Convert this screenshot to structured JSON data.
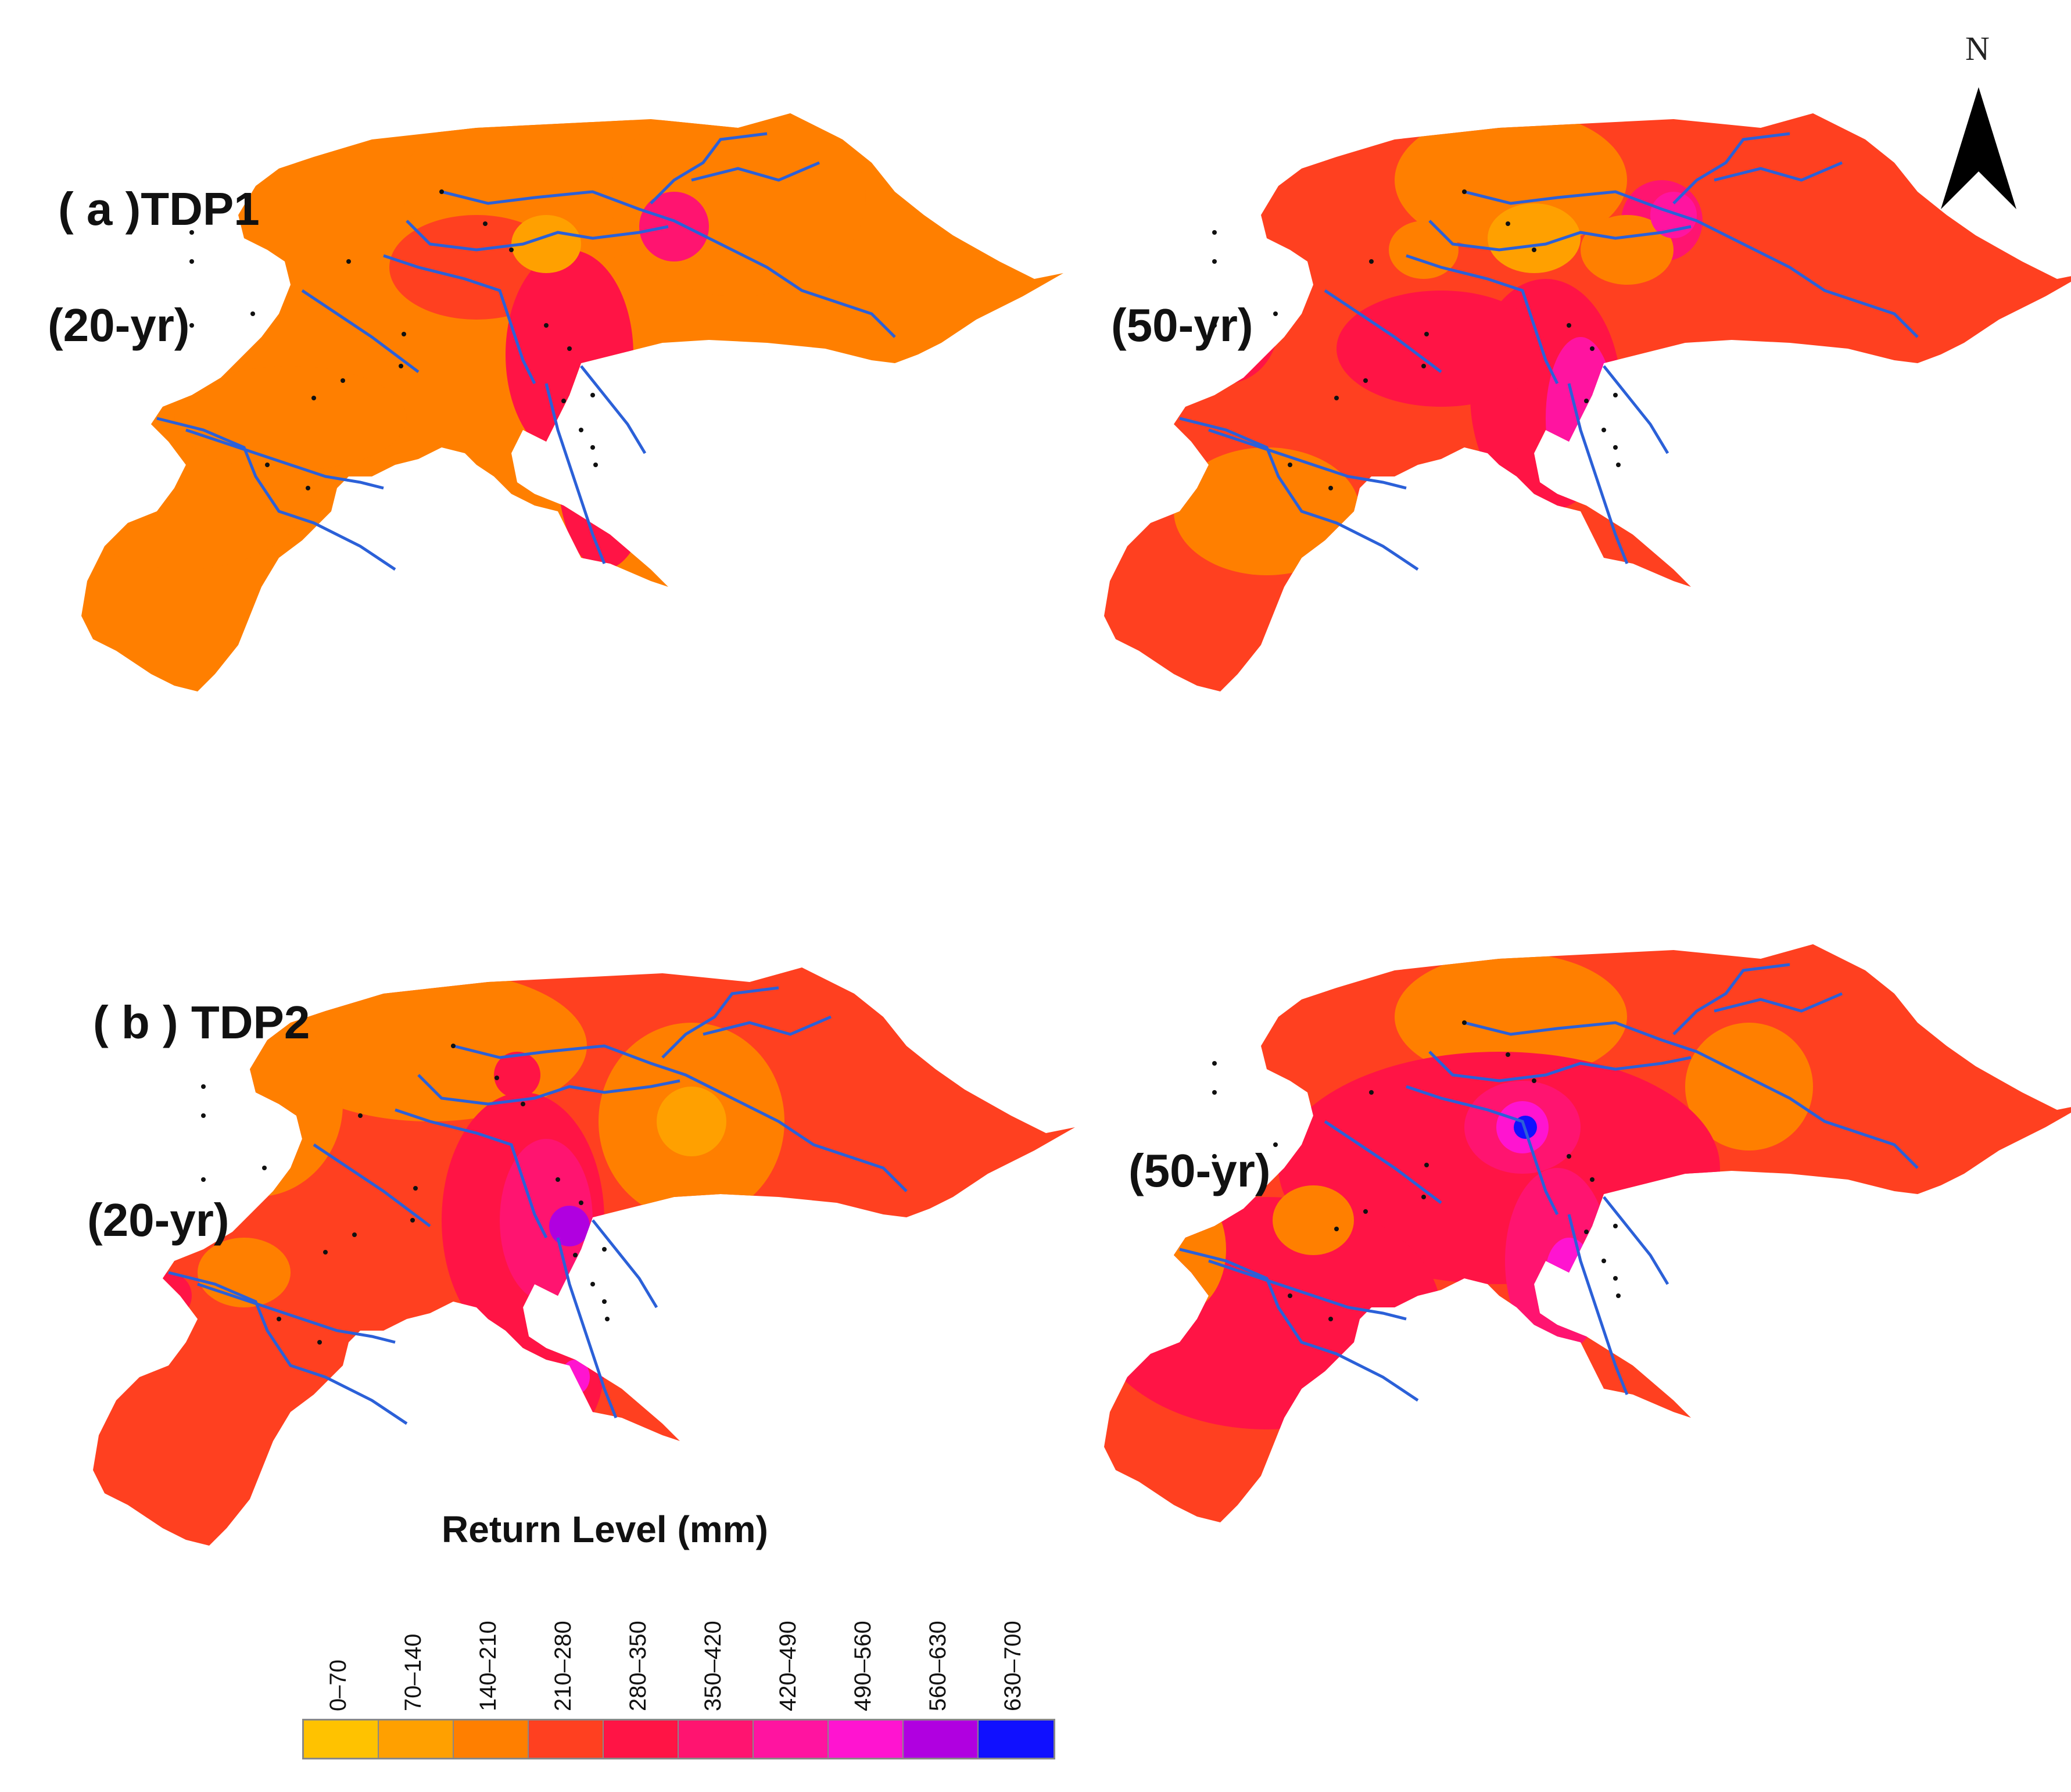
{
  "panels": [
    {
      "id": "a-20",
      "panel_label": "( a )TDP1",
      "return_period": "(20-yr)",
      "base_fill": "#FF7F00",
      "secondary_fill": "#FF4020"
    },
    {
      "id": "a-50",
      "panel_label": "",
      "return_period": "(50-yr)",
      "base_fill": "#FF4020",
      "secondary_fill": "#FF7F00"
    },
    {
      "id": "b-20",
      "panel_label": "( b ) TDP2",
      "return_period": "(20-yr)",
      "base_fill": "#FF4020",
      "secondary_fill": "#FF7F00"
    },
    {
      "id": "b-50",
      "panel_label": "",
      "return_period": "(50-yr)",
      "base_fill": "#FF4020",
      "secondary_fill": "#FF1445"
    }
  ],
  "legend": {
    "title": "Return Level (mm)",
    "classes": [
      {
        "label": "0–70",
        "color": "#FFC200"
      },
      {
        "label": "70–140",
        "color": "#FFA000"
      },
      {
        "label": "140–210",
        "color": "#FF7F00"
      },
      {
        "label": "210–280",
        "color": "#FF4020"
      },
      {
        "label": "280–350",
        "color": "#FF1445"
      },
      {
        "label": "350–420",
        "color": "#FF1470"
      },
      {
        "label": "420–490",
        "color": "#FF14A0"
      },
      {
        "label": "490–560",
        "color": "#FF14D0"
      },
      {
        "label": "560–630",
        "color": "#B000E0"
      },
      {
        "label": "630–700",
        "color": "#1010FF"
      }
    ]
  },
  "north_arrow": {
    "label": "N"
  },
  "colors": {
    "river": "#2B60D8",
    "station": "#111111"
  }
}
